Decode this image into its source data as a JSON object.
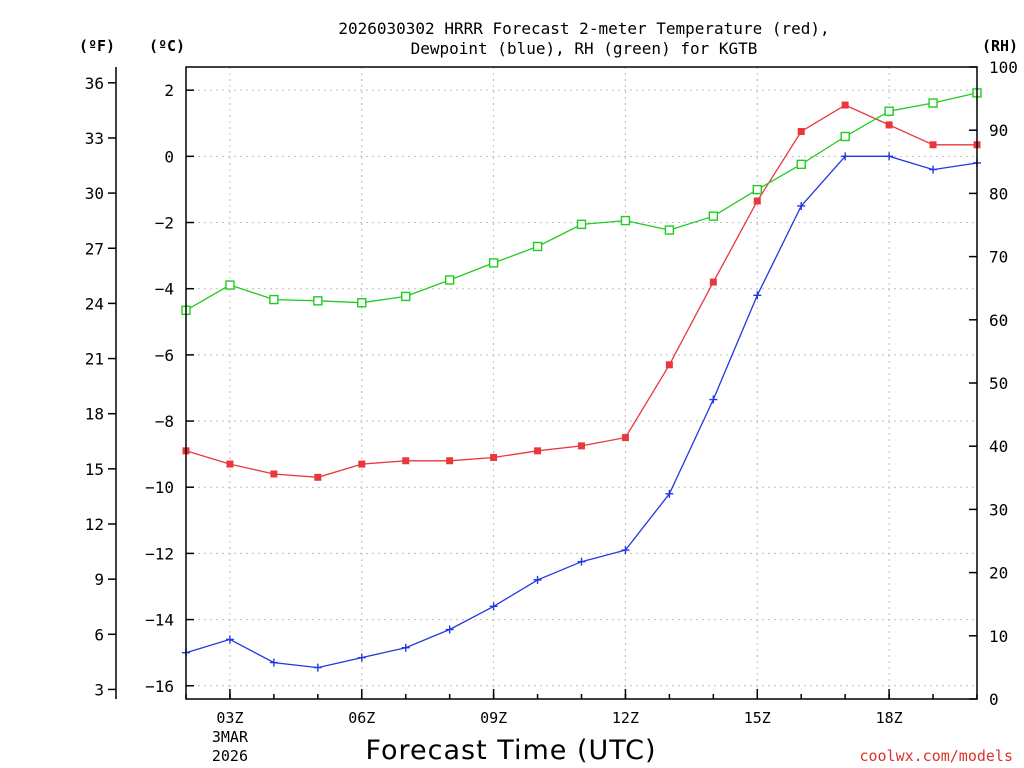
{
  "chart_data": {
    "type": "line",
    "title_line1": "2026030302 HRRR Forecast 2-meter Temperature (red),",
    "title_line2": "Dewpoint (blue), RH (green) for KGTB",
    "xlabel": "Forecast Time (UTC)",
    "x_hours": [
      2,
      3,
      4,
      5,
      6,
      7,
      8,
      9,
      10,
      11,
      12,
      13,
      14,
      15,
      16,
      17,
      18,
      19,
      20
    ],
    "x_ticks": [
      {
        "hour": 3,
        "label": "03Z",
        "sub1": "3MAR",
        "sub2": "2026"
      },
      {
        "hour": 6,
        "label": "06Z"
      },
      {
        "hour": 9,
        "label": "09Z"
      },
      {
        "hour": 12,
        "label": "12Z"
      },
      {
        "hour": 15,
        "label": "15Z"
      },
      {
        "hour": 18,
        "label": "18Z"
      }
    ],
    "left_axis_f": {
      "unit": "(ºF)",
      "ticks": [
        3,
        6,
        9,
        12,
        15,
        18,
        21,
        24,
        27,
        30,
        33,
        36
      ]
    },
    "left_axis_c": {
      "unit": "(ºC)",
      "range": [
        -16.4,
        2.7
      ],
      "ticks": [
        -16,
        -14,
        -12,
        -10,
        -8,
        -6,
        -4,
        -2,
        0,
        2
      ]
    },
    "right_axis": {
      "unit": "(RH)",
      "range": [
        0,
        100
      ],
      "ticks": [
        0,
        10,
        20,
        30,
        40,
        50,
        60,
        70,
        80,
        90,
        100
      ]
    },
    "series": [
      {
        "name": "2-meter Temperature",
        "units": "C",
        "color": "#e8383d",
        "marker": "filled-square",
        "values": [
          -8.9,
          -9.3,
          -9.6,
          -9.7,
          -9.3,
          -9.2,
          -9.2,
          -9.1,
          -8.9,
          -8.75,
          -8.5,
          -6.3,
          -3.8,
          -1.35,
          0.75,
          1.55,
          0.95,
          0.35,
          0.35
        ]
      },
      {
        "name": "Dewpoint",
        "units": "C",
        "color": "#2137e0",
        "marker": "plus",
        "values": [
          -15.0,
          -14.6,
          -15.3,
          -15.45,
          -15.15,
          -14.85,
          -14.3,
          -13.6,
          -12.8,
          -12.25,
          -11.9,
          -10.2,
          -7.35,
          -4.2,
          -1.5,
          0.0,
          0.0,
          -0.4,
          -0.2
        ]
      },
      {
        "name": "RH",
        "units": "%",
        "color": "#21cc21",
        "marker": "open-square",
        "values": [
          61.5,
          65.5,
          63.2,
          63.0,
          62.7,
          63.7,
          66.3,
          69.0,
          71.6,
          75.1,
          75.7,
          74.2,
          76.4,
          80.6,
          84.6,
          89.0,
          93.0,
          94.3,
          95.9
        ]
      }
    ],
    "grid": true,
    "credit": "coolwx.com/models"
  }
}
